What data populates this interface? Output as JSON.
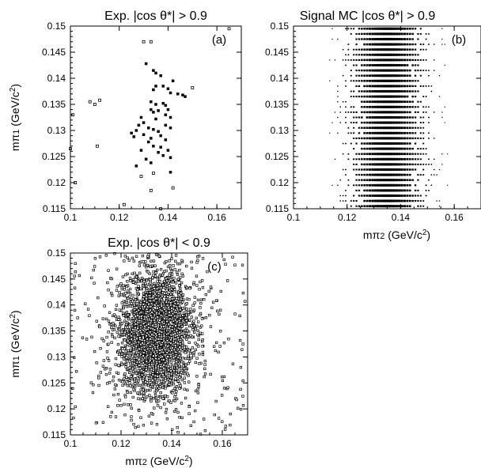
{
  "chart_data": [
    {
      "type": "scatter",
      "panel_label": "(a)",
      "title": "Exp.    |cos θ*| > 0.9",
      "xlabel": "",
      "ylabel": "mπ1 (GeV/c2)",
      "xlim": [
        0.1,
        0.17
      ],
      "ylim": [
        0.115,
        0.15
      ],
      "xticks": [
        "0.1",
        "0.12",
        "0.14",
        "0.16"
      ],
      "yticks": [
        "0.115",
        "0.12",
        "0.125",
        "0.13",
        "0.135",
        "0.14",
        "0.145",
        "0.15"
      ],
      "points": [
        [
          0.1,
          0.1265
        ],
        [
          0.102,
          0.12
        ],
        [
          0.101,
          0.133
        ],
        [
          0.108,
          0.1355
        ],
        [
          0.11,
          0.135
        ],
        [
          0.112,
          0.1358
        ],
        [
          0.111,
          0.127
        ],
        [
          0.13,
          0.147
        ],
        [
          0.133,
          0.147
        ],
        [
          0.131,
          0.1428
        ],
        [
          0.134,
          0.1415
        ],
        [
          0.135,
          0.141
        ],
        [
          0.137,
          0.1405
        ],
        [
          0.135,
          0.1385
        ],
        [
          0.134,
          0.1378
        ],
        [
          0.142,
          0.1395
        ],
        [
          0.138,
          0.1385
        ],
        [
          0.14,
          0.138
        ],
        [
          0.141,
          0.1372
        ],
        [
          0.144,
          0.137
        ],
        [
          0.146,
          0.1368
        ],
        [
          0.15,
          0.1382
        ],
        [
          0.147,
          0.1365
        ],
        [
          0.133,
          0.1355
        ],
        [
          0.135,
          0.135
        ],
        [
          0.138,
          0.1352
        ],
        [
          0.139,
          0.1348
        ],
        [
          0.133,
          0.134
        ],
        [
          0.136,
          0.1338
        ],
        [
          0.14,
          0.134
        ],
        [
          0.129,
          0.1325
        ],
        [
          0.134,
          0.1335
        ],
        [
          0.135,
          0.1322
        ],
        [
          0.139,
          0.133
        ],
        [
          0.141,
          0.1325
        ],
        [
          0.13,
          0.1315
        ],
        [
          0.128,
          0.131
        ],
        [
          0.132,
          0.1305
        ],
        [
          0.134,
          0.1302
        ],
        [
          0.136,
          0.1298
        ],
        [
          0.139,
          0.131
        ],
        [
          0.141,
          0.1305
        ],
        [
          0.127,
          0.13
        ],
        [
          0.125,
          0.1295
        ],
        [
          0.13,
          0.1292
        ],
        [
          0.133,
          0.1285
        ],
        [
          0.137,
          0.129
        ],
        [
          0.139,
          0.1282
        ],
        [
          0.126,
          0.1288
        ],
        [
          0.132,
          0.1278
        ],
        [
          0.134,
          0.127
        ],
        [
          0.137,
          0.1268
        ],
        [
          0.14,
          0.1262
        ],
        [
          0.129,
          0.1262
        ],
        [
          0.136,
          0.1258
        ],
        [
          0.138,
          0.1252
        ],
        [
          0.141,
          0.1248
        ],
        [
          0.127,
          0.1232
        ],
        [
          0.131,
          0.1245
        ],
        [
          0.133,
          0.1238
        ],
        [
          0.141,
          0.122
        ],
        [
          0.129,
          0.1212
        ],
        [
          0.134,
          0.1218
        ],
        [
          0.142,
          0.119
        ],
        [
          0.122,
          0.1158
        ],
        [
          0.137,
          0.115
        ],
        [
          0.133,
          0.1185
        ],
        [
          0.165,
          0.1495
        ]
      ]
    },
    {
      "type": "scatter",
      "panel_label": "(b)",
      "title": "Signal MC |cos θ*| > 0.9",
      "xlabel": "mπ2 (GeV/c2)",
      "ylabel": "",
      "xlim": [
        0.1,
        0.17
      ],
      "ylim": [
        0.115,
        0.15
      ],
      "xticks": [
        "0.1",
        "0.12",
        "0.14",
        "0.16"
      ],
      "yticks": [
        "0.115",
        "0.12",
        "0.125",
        "0.13",
        "0.135",
        "0.14",
        "0.145",
        "0.15"
      ],
      "grid_x_step": 0.001,
      "grid_y_step": 0.001,
      "density_center": [
        0.135,
        0.135
      ]
    },
    {
      "type": "scatter",
      "panel_label": "(c)",
      "title": "Exp.    |cos θ*| < 0.9",
      "xlabel": "mπ2 (GeV/c2)",
      "ylabel": "mπ1 (GeV/c2)",
      "xlim": [
        0.1,
        0.17
      ],
      "ylim": [
        0.115,
        0.15
      ],
      "xticks": [
        "0.1",
        "0.12",
        "0.14",
        "0.16"
      ],
      "yticks": [
        "0.115",
        "0.12",
        "0.125",
        "0.13",
        "0.135",
        "0.14",
        "0.145",
        "0.15"
      ],
      "n_points": 3000,
      "density_center": [
        0.1335,
        0.1345
      ]
    }
  ]
}
